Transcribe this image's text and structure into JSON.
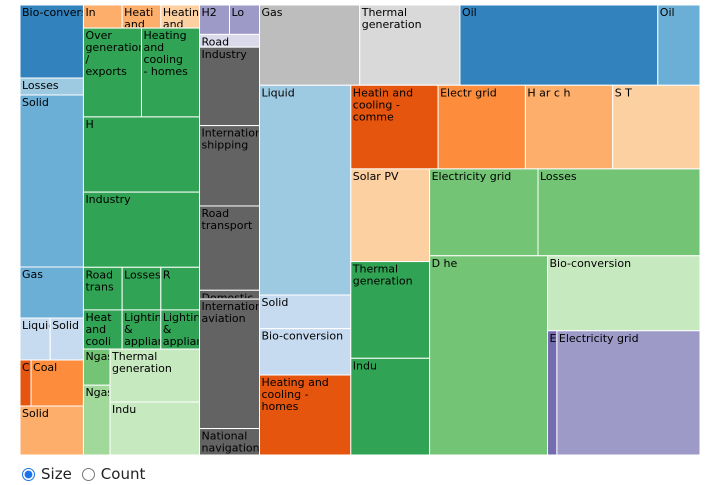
{
  "controls": {
    "options": [
      {
        "label": "Size",
        "checked": true
      },
      {
        "label": "Count",
        "checked": false
      }
    ]
  },
  "chart_data": {
    "type": "treemap",
    "palette": [
      "#3182bd",
      "#6baed6",
      "#9ecae1",
      "#c6dbef",
      "#e6550d",
      "#fd8d3c",
      "#fdae6b",
      "#fdd0a2",
      "#31a354",
      "#74c476",
      "#a1d99b",
      "#c7e9c0",
      "#756bb1",
      "#9e9ac8",
      "#bcbddc",
      "#dadaeb",
      "#636363",
      "#969696",
      "#bdbdbd",
      "#d9d9d9"
    ],
    "columns": [
      {
        "share": 0.0933,
        "cells": [
          {
            "label": "Bio-conversion",
            "value": 73,
            "color": "#3182bd"
          },
          {
            "label": "Losses",
            "value": 17,
            "color": "#9ecae1"
          },
          {
            "label": "Solid",
            "value": 172,
            "color": "#6baed6"
          },
          {
            "label": "Gas",
            "value": 51,
            "color": "#6baed6"
          },
          {
            "label": "Liquid",
            "value": 20,
            "color": "#c6dbef"
          },
          {
            "label": "Solid",
            "value": 22,
            "color": "#c6dbef"
          },
          {
            "label": "Coal",
            "value": 8,
            "color": "#e6550d"
          },
          {
            "label": "Coal",
            "value": 38,
            "color": "#fd8d3c"
          },
          {
            "label": "Solid",
            "value": 49,
            "color": "#fdae6b"
          }
        ]
      },
      {
        "share": 0.1707,
        "cells": [
          {
            "label": "In",
            "value": 13,
            "color": "#fdae6b"
          },
          {
            "label": "Heati and",
            "value": 13,
            "color": "#fdae6b"
          },
          {
            "label": "Heating and",
            "value": 13,
            "color": "#fdd0a2"
          },
          {
            "label": "Over generation / exports",
            "value": 75,
            "color": "#31a354"
          },
          {
            "label": "Heating and cooling - homes",
            "value": 75,
            "color": "#31a354"
          },
          {
            "label": "H",
            "value": 127,
            "color": "#31a354"
          },
          {
            "label": "Industry",
            "value": 127,
            "color": "#31a354"
          },
          {
            "label": "Road trans",
            "value": 24,
            "color": "#31a354"
          },
          {
            "label": "Losses",
            "value": 24,
            "color": "#31a354"
          },
          {
            "label": "R",
            "value": 24,
            "color": "#31a354"
          },
          {
            "label": "Heat and cooli",
            "value": 22,
            "color": "#31a354"
          },
          {
            "label": "Lighting & appliances - commercial",
            "value": 22,
            "color": "#31a354"
          },
          {
            "label": "Lighting & appliances - homes",
            "value": 22,
            "color": "#31a354"
          },
          {
            "label": "Ngas",
            "value": 14,
            "color": "#74c476"
          },
          {
            "label": "Ngas",
            "value": 27,
            "color": "#a1d99b"
          },
          {
            "label": "Thermal generation",
            "value": 69,
            "color": "#c7e9c0"
          },
          {
            "label": "Indu",
            "value": 69,
            "color": "#c7e9c0"
          }
        ]
      },
      {
        "share": 0.0882,
        "cells": [
          {
            "label": "H2",
            "value": 15,
            "color": "#9e9ac8"
          },
          {
            "label": "Lo",
            "value": 15,
            "color": "#9e9ac8"
          },
          {
            "label": "Road",
            "value": 13,
            "color": "#dadaeb"
          },
          {
            "label": "Industry",
            "value": 80,
            "color": "#636363"
          },
          {
            "label": "International shipping",
            "value": 82,
            "color": "#636363"
          },
          {
            "label": "Road transport",
            "value": 86,
            "color": "#636363"
          },
          {
            "label": "Domestic",
            "value": 9,
            "color": "#636363"
          },
          {
            "label": "International aviation",
            "value": 132,
            "color": "#636363"
          },
          {
            "label": "National navigation",
            "value": 27,
            "color": "#636363"
          }
        ]
      },
      {
        "share": 0.6478,
        "cells": [
          {
            "label": "Gas",
            "value": 76,
            "color": "#bdbdbd"
          },
          {
            "label": "Thermal generation",
            "value": 76,
            "color": "#d9d9d9"
          },
          {
            "label": "Oil",
            "value": 150,
            "color": "#3182bd"
          },
          {
            "label": "Oil",
            "value": 32,
            "color": "#6baed6"
          },
          {
            "label": "Liquid",
            "value": 181,
            "color": "#9ecae1"
          },
          {
            "label": "Solid",
            "value": 29,
            "color": "#c6dbef"
          },
          {
            "label": "Bio-conversion",
            "value": 40,
            "color": "#c6dbef"
          },
          {
            "label": "Heating and cooling - homes",
            "value": 69,
            "color": "#e6550d"
          },
          {
            "label": "Heatin and cooling - comme",
            "value": 69,
            "color": "#e6550d"
          },
          {
            "label": "Electr grid",
            "value": 69,
            "color": "#fd8d3c"
          },
          {
            "label": "H ar c h",
            "value": 69,
            "color": "#fdae6b"
          },
          {
            "label": "S T",
            "value": 69,
            "color": "#fdd0a2"
          },
          {
            "label": "Solar PV",
            "value": 69,
            "color": "#fdd0a2"
          },
          {
            "label": "Thermal generation",
            "value": 72,
            "color": "#31a354"
          },
          {
            "label": "Indu",
            "value": 72,
            "color": "#31a354"
          },
          {
            "label": "Electricity grid",
            "value": 89,
            "color": "#74c476"
          },
          {
            "label": "Losses",
            "value": 133,
            "color": "#74c476"
          },
          {
            "label": "D he",
            "value": 222,
            "color": "#74c476"
          },
          {
            "label": "Bio-conversion",
            "value": 108,
            "color": "#c7e9c0"
          },
          {
            "label": "Electricity",
            "value": 11,
            "color": "#756bb1"
          },
          {
            "label": "Electricity grid",
            "value": 168,
            "color": "#9e9ac8"
          }
        ]
      }
    ]
  }
}
